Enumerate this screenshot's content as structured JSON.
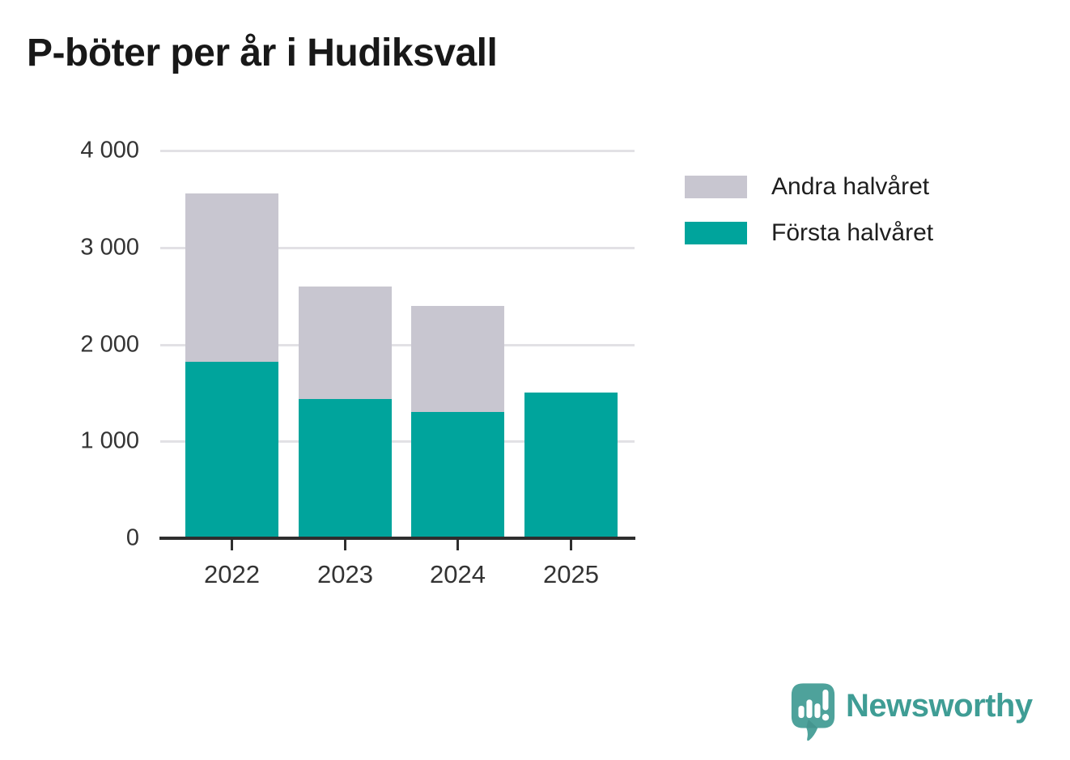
{
  "chart_data": {
    "type": "bar",
    "stacked": true,
    "title": "P-böter per år i Hudiksvall",
    "categories": [
      "2022",
      "2023",
      "2024",
      "2025"
    ],
    "series": [
      {
        "name": "Första halvåret",
        "color": "#00a49c",
        "values": [
          1820,
          1440,
          1300,
          1500
        ]
      },
      {
        "name": "Andra halvåret",
        "color": "#c8c6d0",
        "values": [
          1740,
          1160,
          1100,
          0
        ]
      }
    ],
    "totals": [
      3560,
      2600,
      2400,
      1500
    ],
    "ylim": [
      0,
      4000
    ],
    "yticks": [
      0,
      1000,
      2000,
      3000,
      4000
    ],
    "ytick_labels": [
      "0",
      "1 000",
      "2 000",
      "3 000",
      "4 000"
    ],
    "grid": "horizontal",
    "legend_position": "right-top",
    "legend_order_top_to_bottom": [
      "Andra halvåret",
      "Första halvåret"
    ]
  },
  "branding": {
    "wordmark": "Newsworthy",
    "logo_icon": "speech-bubble-bar-chart-icon",
    "brand_color": "#3f9d95",
    "bubble_color": "#4ea29b"
  },
  "colors": {
    "background": "#ffffff",
    "grid": "#e2e1e5",
    "axis": "#2e2e2e",
    "title_text": "#181818",
    "axis_label_text": "#333333",
    "legend_text": "#1e1e1e"
  }
}
